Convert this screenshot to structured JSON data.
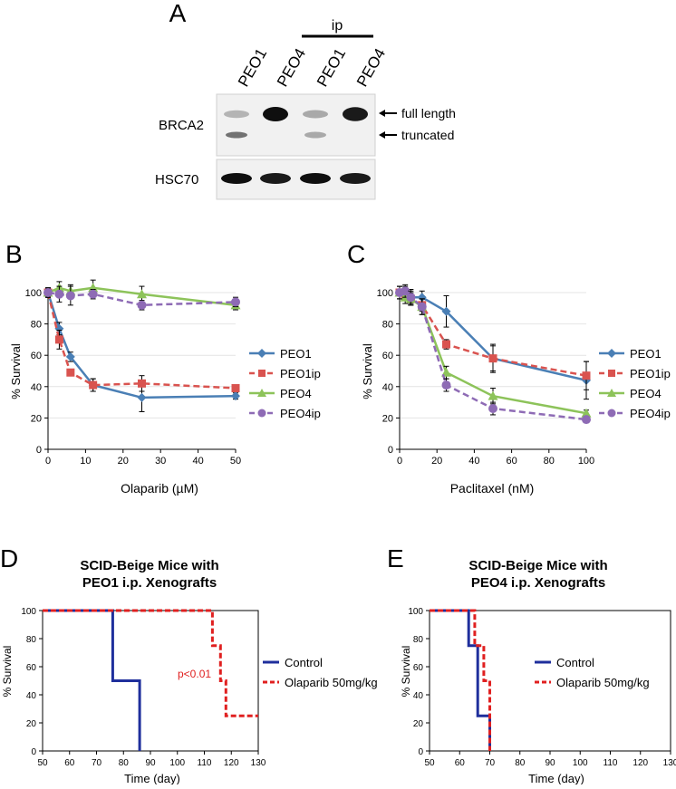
{
  "panel_a": {
    "letter": "A",
    "ip_label": "ip",
    "lanes": [
      "PEO1",
      "PEO4",
      "PEO1",
      "PEO4"
    ],
    "blot_rows": [
      {
        "name": "BRCA2",
        "annotations": [
          "full length",
          "truncated"
        ]
      },
      {
        "name": "HSC70",
        "annotations": []
      }
    ],
    "band_intensity": {
      "BRCA2_full_length": [
        0.25,
        1.0,
        0.3,
        0.95
      ],
      "BRCA2_truncated": [
        0.55,
        0.0,
        0.3,
        0.0
      ],
      "HSC70": [
        1.0,
        0.95,
        1.0,
        0.95
      ]
    }
  },
  "chart_data": [
    {
      "id": "B",
      "type": "line",
      "letter": "B",
      "title": "",
      "xlabel": "Olaparib (µM)",
      "ylabel": "% Survival",
      "xlim": [
        0,
        50
      ],
      "ylim": [
        0,
        100
      ],
      "xticks": [
        0,
        10,
        20,
        30,
        40,
        50
      ],
      "yticks": [
        0,
        20,
        40,
        60,
        80,
        100
      ],
      "series": [
        {
          "name": "PEO1",
          "color": "#4a7fb5",
          "marker": "diamond",
          "dash": "solid",
          "x": [
            0,
            3,
            6,
            12,
            25,
            50
          ],
          "values": [
            100,
            77,
            59,
            41,
            33,
            34
          ],
          "errors": [
            3,
            4,
            3,
            4,
            9,
            2
          ]
        },
        {
          "name": "PEO1ip",
          "color": "#d9534f",
          "marker": "square",
          "dash": "dashed",
          "x": [
            0,
            3,
            6,
            12,
            25,
            50
          ],
          "values": [
            100,
            70,
            49,
            41,
            42,
            39
          ],
          "errors": [
            3,
            6,
            2,
            4,
            5,
            2
          ]
        },
        {
          "name": "PEO4",
          "color": "#8dc35a",
          "marker": "triangle",
          "dash": "solid",
          "x": [
            0,
            3,
            6,
            12,
            25,
            50
          ],
          "values": [
            100,
            103,
            101,
            103,
            99,
            92
          ],
          "errors": [
            3,
            4,
            4,
            5,
            5,
            3
          ]
        },
        {
          "name": "PEO4ip",
          "color": "#8e6bb5",
          "marker": "circle",
          "dash": "dashed",
          "x": [
            0,
            3,
            6,
            12,
            25,
            50
          ],
          "values": [
            100,
            99,
            98,
            99,
            92,
            94
          ],
          "errors": [
            3,
            5,
            6,
            3,
            3,
            3
          ]
        }
      ],
      "legend": "right"
    },
    {
      "id": "C",
      "type": "line",
      "letter": "C",
      "title": "",
      "xlabel": "Paclitaxel (nM)",
      "ylabel": "% Survival",
      "xlim": [
        0,
        100
      ],
      "ylim": [
        0,
        100
      ],
      "xticks": [
        0,
        20,
        40,
        60,
        80,
        100
      ],
      "yticks": [
        0,
        20,
        40,
        60,
        80,
        100
      ],
      "series": [
        {
          "name": "PEO1",
          "color": "#4a7fb5",
          "marker": "diamond",
          "dash": "solid",
          "x": [
            0,
            3,
            6,
            12,
            25,
            50,
            100
          ],
          "values": [
            100,
            100,
            97,
            97,
            88,
            58,
            44
          ],
          "errors": [
            4,
            4,
            5,
            4,
            10,
            8,
            12
          ]
        },
        {
          "name": "PEO1ip",
          "color": "#d9534f",
          "marker": "square",
          "dash": "dashed",
          "x": [
            0,
            3,
            6,
            12,
            25,
            50,
            100
          ],
          "values": [
            100,
            99,
            96,
            92,
            67,
            58,
            47
          ],
          "errors": [
            4,
            4,
            4,
            4,
            3,
            9,
            9
          ]
        },
        {
          "name": "PEO4",
          "color": "#8dc35a",
          "marker": "triangle",
          "dash": "solid",
          "x": [
            0,
            3,
            6,
            12,
            25,
            50,
            100
          ],
          "values": [
            100,
            97,
            96,
            91,
            49,
            34,
            23
          ],
          "errors": [
            4,
            4,
            4,
            5,
            4,
            5,
            2
          ]
        },
        {
          "name": "PEO4ip",
          "color": "#8e6bb5",
          "marker": "circle",
          "dash": "dashed",
          "x": [
            0,
            3,
            6,
            12,
            25,
            50,
            100
          ],
          "values": [
            100,
            101,
            97,
            91,
            41,
            26,
            19
          ],
          "errors": [
            4,
            4,
            4,
            5,
            4,
            4,
            2
          ]
        }
      ],
      "legend": "right"
    },
    {
      "id": "D",
      "type": "line",
      "subtype": "kaplan-meier",
      "letter": "D",
      "title": "SCID-Beige Mice with",
      "subtitle": "PEO1 i.p. Xenografts",
      "xlabel": "Time (day)",
      "ylabel": "% Survival",
      "xlim": [
        50,
        130
      ],
      "ylim": [
        0,
        100
      ],
      "xticks": [
        50,
        60,
        70,
        80,
        90,
        100,
        110,
        120,
        130
      ],
      "yticks": [
        0,
        20,
        40,
        60,
        80,
        100
      ],
      "annotation": "p<0.01",
      "series": [
        {
          "name": "Control",
          "color": "#1f2f9c",
          "dash": "solid",
          "x": [
            50,
            76,
            76,
            86,
            86
          ],
          "values": [
            100,
            100,
            50,
            50,
            0
          ]
        },
        {
          "name": "Olaparib 50mg/kg",
          "color": "#e02020",
          "dash": "dashed",
          "x": [
            50,
            113,
            113,
            116,
            116,
            118,
            118,
            130
          ],
          "values": [
            100,
            100,
            75,
            75,
            50,
            50,
            25,
            25
          ]
        }
      ],
      "legend": "right"
    },
    {
      "id": "E",
      "type": "line",
      "subtype": "kaplan-meier",
      "letter": "E",
      "title": "SCID-Beige Mice with",
      "subtitle": "PEO4 i.p. Xenografts",
      "xlabel": "Time (day)",
      "ylabel": "% Survival",
      "xlim": [
        50,
        130
      ],
      "ylim": [
        0,
        100
      ],
      "xticks": [
        50,
        60,
        70,
        80,
        90,
        100,
        110,
        120,
        130
      ],
      "yticks": [
        0,
        20,
        40,
        60,
        80,
        100
      ],
      "annotation": "",
      "series": [
        {
          "name": "Control",
          "color": "#1f2f9c",
          "dash": "solid",
          "x": [
            50,
            63,
            63,
            66,
            66,
            70,
            70
          ],
          "values": [
            100,
            100,
            75,
            75,
            25,
            25,
            0
          ]
        },
        {
          "name": "Olaparib 50mg/kg",
          "color": "#e02020",
          "dash": "dashed",
          "x": [
            50,
            65,
            65,
            68,
            68,
            70,
            70
          ],
          "values": [
            100,
            100,
            75,
            75,
            50,
            50,
            0
          ]
        }
      ],
      "legend": "right"
    }
  ]
}
